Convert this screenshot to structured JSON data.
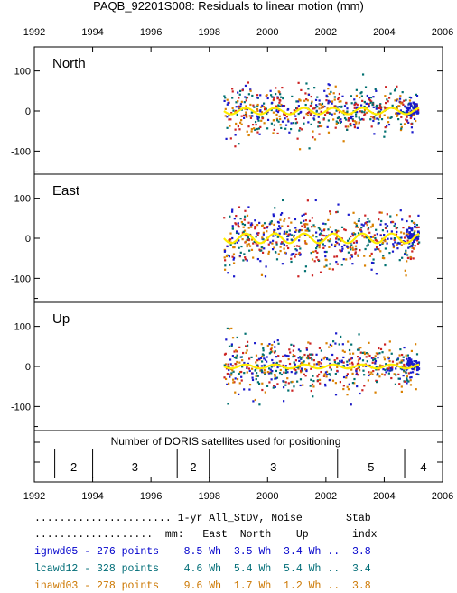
{
  "chart_data": {
    "type": "scatter",
    "title": "PAQB_92201S008: Residuals to linear motion (mm)",
    "x_ticks": [
      1992,
      1994,
      1996,
      1998,
      2000,
      2002,
      2004,
      2006
    ],
    "xlim": [
      1992,
      2006
    ],
    "ylim": [
      -160,
      160
    ],
    "y_ticks": [
      100,
      0,
      -100
    ],
    "panels": [
      {
        "name": "North",
        "scatter": 30,
        "annual_amp": 8,
        "series": [
          "ignwd05",
          "lcawd12",
          "inawd03"
        ]
      },
      {
        "name": "East",
        "scatter": 38,
        "annual_amp": 12,
        "series": [
          "ignwd05",
          "lcawd12",
          "inawd03"
        ]
      },
      {
        "name": "Up",
        "scatter": 32,
        "annual_amp": 5,
        "series": [
          "ignwd05",
          "lcawd12",
          "inawd03"
        ]
      }
    ],
    "data_start": 1998.5,
    "data_end": 2005.2,
    "satellites": {
      "title": "Number of DORIS satellites used for positioning",
      "segments": [
        {
          "label": "2",
          "start": 1992.7,
          "end": 1994.0
        },
        {
          "label": "3",
          "start": 1994.0,
          "end": 1996.9
        },
        {
          "label": "2",
          "start": 1996.9,
          "end": 1998.0
        },
        {
          "label": "3",
          "start": 1998.0,
          "end": 2002.4
        },
        {
          "label": "5",
          "start": 2002.4,
          "end": 2004.7
        },
        {
          "label": "4",
          "start": 2004.7,
          "end": 2006.0
        }
      ]
    }
  },
  "stats": {
    "header1": "...................... 1-yr All_StDv, Noise       Stab",
    "header2": "...................  mm:   East  North    Up       indx",
    "rows": [
      {
        "text": "ignwd05 - 276 points    8.5 Wh  3.5 Wh  3.4 Wh ..  3.8",
        "color": "#0000cc",
        "name": "ignwd05",
        "points": 276,
        "east": "8.5 Wh",
        "north": "3.5 Wh",
        "up": "3.4 Wh",
        "stab": "3.8"
      },
      {
        "text": "lcawd12 - 328 points    4.6 Wh  5.4 Wh  5.4 Wh ..  3.4",
        "color": "#006d77",
        "name": "lcawd12",
        "points": 328,
        "east": "4.6 Wh",
        "north": "5.4 Wh",
        "up": "5.4 Wh",
        "stab": "3.4"
      },
      {
        "text": "inawd03 - 278 points    9.6 Wh  1.7 Wh  1.2 Wh ..  3.8",
        "color": "#cc7700",
        "name": "inawd03",
        "points": 278,
        "east": "9.6 Wh",
        "north": "1.7 Wh",
        "up": "1.2 Wh",
        "stab": "3.8"
      }
    ]
  },
  "colors": {
    "ignwd05": "#1a1acc",
    "lcawd12": "#007070",
    "inawd03": "#d98000",
    "extra": "#cc2222",
    "fit": "#ffee00"
  }
}
